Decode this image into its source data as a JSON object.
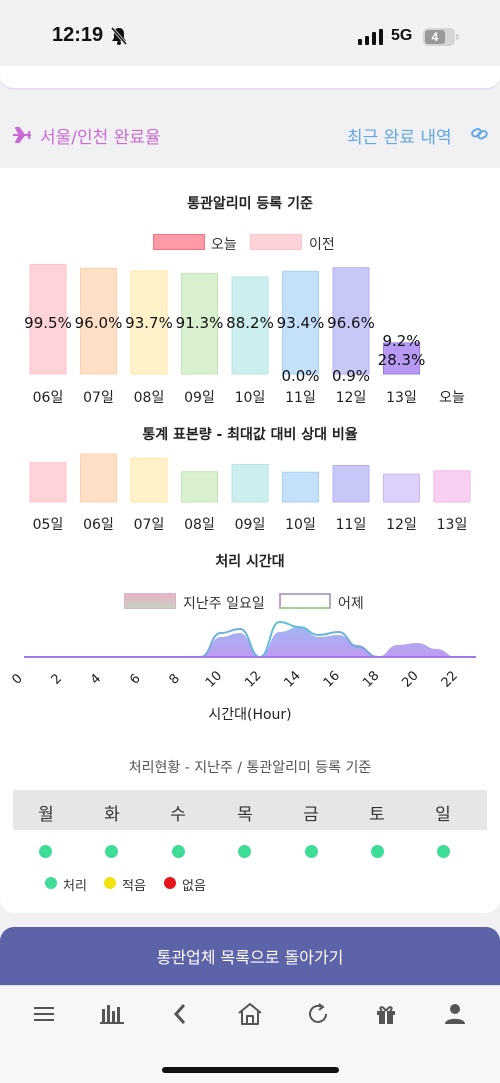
{
  "status_bar": {
    "time": "12:19",
    "network": "5G",
    "battery": "4"
  },
  "header": {
    "title": "서울/인천 완료율",
    "recent_link": "최근 완료 내역"
  },
  "chart1": {
    "title": "통관알리미 등록 기준",
    "legend_today": "오늘",
    "legend_prev": "이전"
  },
  "chart2": {
    "title": "통계 표본량 - 최대값 대비 상대 비율"
  },
  "chart3": {
    "title": "처리 시간대",
    "legend_last_sunday": "지난주 일요일",
    "legend_yesterday": "어제",
    "xlabel": "시간대(Hour)"
  },
  "chart_data": [
    {
      "type": "bar",
      "title": "통관알리미 등록 기준",
      "categories": [
        "06일",
        "07일",
        "08일",
        "09일",
        "10일",
        "11일",
        "12일",
        "13일",
        "오늘"
      ],
      "values": [
        99.5,
        96.0,
        93.7,
        91.3,
        88.2,
        93.4,
        96.6,
        28.3,
        null
      ],
      "labels": [
        "99.5%",
        "96.0%",
        "93.7%",
        "91.3%",
        "88.2%",
        "93.4%",
        "96.6%",
        "28.3%",
        ""
      ],
      "bottom_labels": [
        "",
        "",
        "",
        "",
        "",
        "0.0%",
        "0.9%",
        "9.2%",
        ""
      ],
      "legend": [
        "오늘",
        "이전"
      ],
      "ylim": [
        0,
        100
      ]
    },
    {
      "type": "bar",
      "title": "통계 표본량 - 최대값 대비 상대 비율",
      "categories": [
        "05일",
        "06일",
        "07일",
        "08일",
        "09일",
        "10일",
        "11일",
        "12일",
        "13일"
      ],
      "values": [
        82,
        100,
        91,
        63,
        78,
        62,
        76,
        58,
        65
      ],
      "ylim": [
        0,
        100
      ]
    },
    {
      "type": "area",
      "title": "처리 시간대",
      "xlabel": "시간대(Hour)",
      "x_ticks": [
        "0",
        "2",
        "4",
        "6",
        "8",
        "10",
        "12",
        "14",
        "16",
        "18",
        "20",
        "22"
      ],
      "x": [
        0,
        1,
        2,
        3,
        4,
        5,
        6,
        7,
        8,
        9,
        10,
        11,
        12,
        13,
        14,
        15,
        16,
        17,
        18,
        19,
        20,
        21,
        22,
        23
      ],
      "series": [
        {
          "name": "지난주 일요일",
          "values": [
            0,
            0,
            0,
            0,
            0,
            0,
            0,
            0,
            0,
            0,
            20,
            24,
            0,
            25,
            30,
            20,
            22,
            12,
            0,
            12,
            14,
            8,
            0,
            0
          ]
        },
        {
          "name": "어제",
          "values": [
            0,
            0,
            0,
            0,
            0,
            0,
            0,
            0,
            0,
            0,
            24,
            28,
            0,
            35,
            30,
            22,
            25,
            10,
            0,
            0,
            0,
            0,
            0,
            0
          ]
        }
      ],
      "ylim": [
        0,
        40
      ]
    }
  ],
  "status_section": {
    "caption": "처리현황 - 지난주 / 통관알리미 등록 기준",
    "days": [
      "월",
      "화",
      "수",
      "목",
      "금",
      "토",
      "일"
    ],
    "key": {
      "processed": "처리",
      "low": "적음",
      "none": "없음"
    },
    "colors": {
      "processed": "#3ddc97",
      "low": "#f2e20f",
      "none": "#e8141c"
    }
  },
  "back_button": "통관업체 목록으로 돌아가기",
  "nav": [
    "menu-icon",
    "chart-icon",
    "back-icon",
    "home-icon",
    "refresh-icon",
    "gift-icon",
    "user-icon"
  ]
}
